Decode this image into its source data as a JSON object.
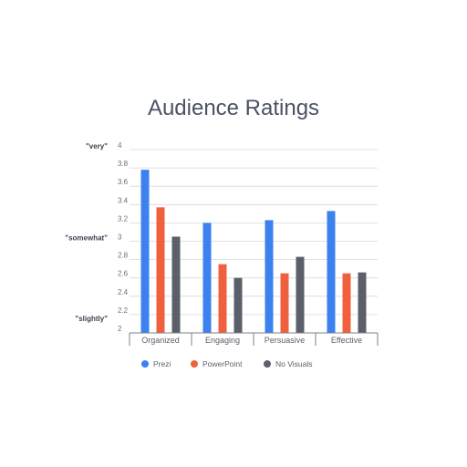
{
  "chart_data": {
    "type": "bar",
    "title": "Audience Ratings",
    "categories": [
      "Organized",
      "Engaging",
      "Persuasive",
      "Effective"
    ],
    "series": [
      {
        "name": "Prezi",
        "color": "#3b82f0",
        "values": [
          3.78,
          3.2,
          3.23,
          3.33
        ]
      },
      {
        "name": "PowerPoint",
        "color": "#f0603f",
        "values": [
          3.37,
          2.75,
          2.65,
          2.65
        ]
      },
      {
        "name": "No Visuals",
        "color": "#5a5f6a",
        "values": [
          3.05,
          2.6,
          2.83,
          2.66
        ]
      }
    ],
    "ylim": [
      2,
      4
    ],
    "yticks": [
      "2",
      "2.2",
      "2.4",
      "2.6",
      "2.8",
      "3",
      "3.2",
      "3.4",
      "3.6",
      "3.8",
      "4"
    ],
    "qualitative_labels": [
      {
        "value": 4,
        "label": "\"very\""
      },
      {
        "value": 3,
        "label": "\"somewhat\""
      },
      {
        "value": 2.12,
        "label": "\"slightly\""
      }
    ],
    "grid": true,
    "legend": "bottom"
  }
}
